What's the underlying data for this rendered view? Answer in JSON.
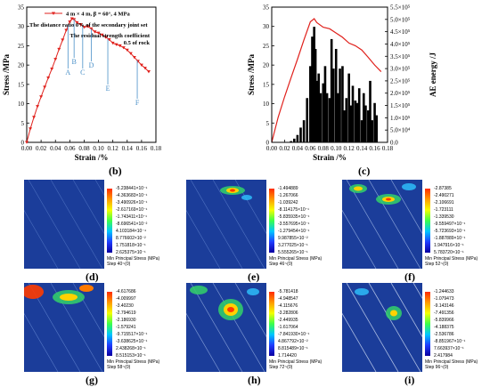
{
  "chart_data": [
    {
      "type": "line",
      "panel": "(b)",
      "legend": "4 m × 4 m, β = 60°, 4 MPa",
      "annotation_ratio": "The distance ratio  0%  of the secondary joint set",
      "annotation_residual": "The residual strength coefficient 0.5 of rock",
      "xlabel": "Strain /%",
      "ylabel": "Stress /MPa",
      "xlim": [
        0,
        0.18
      ],
      "ylim": [
        0,
        35
      ],
      "xticks": [
        "0.00",
        "0.02",
        "0.04",
        "0.06",
        "0.08",
        "0.10",
        "0.12",
        "0.14",
        "0.16",
        "0.18"
      ],
      "yticks": [
        "0",
        "5",
        "10",
        "15",
        "20",
        "25",
        "30",
        "35"
      ],
      "series": [
        {
          "x": [
            0,
            0.005,
            0.01,
            0.015,
            0.02,
            0.025,
            0.03,
            0.035,
            0.04,
            0.045,
            0.05,
            0.055,
            0.06,
            0.063,
            0.066,
            0.07,
            0.075,
            0.08,
            0.085,
            0.09,
            0.095,
            0.1,
            0.105,
            0.11,
            0.115,
            0.12,
            0.125,
            0.13,
            0.135,
            0.14,
            0.145,
            0.15,
            0.155,
            0.16,
            0.165,
            0.17
          ],
          "y": [
            0,
            3.5,
            6.5,
            9.3,
            11.8,
            14.3,
            16.7,
            19.0,
            21.5,
            24.1,
            26.5,
            29.0,
            31.2,
            32.0,
            31.8,
            31.0,
            30.5,
            29.8,
            30.0,
            29.4,
            28.6,
            28.3,
            27.8,
            27.2,
            26.6,
            25.7,
            25.3,
            25.0,
            24.5,
            23.9,
            23.0,
            22.0,
            21.0,
            20.0,
            19.2,
            18.3
          ]
        }
      ],
      "points": [
        {
          "label": "A",
          "x": 0.0575,
          "y": 30.3
        },
        {
          "label": "B",
          "x": 0.066,
          "y": 31.9
        },
        {
          "label": "C",
          "x": 0.078,
          "y": 30.0
        },
        {
          "label": "D",
          "x": 0.09,
          "y": 29.4
        },
        {
          "label": "E",
          "x": 0.113,
          "y": 26.8
        },
        {
          "label": "F",
          "x": 0.154,
          "y": 21.2
        }
      ]
    },
    {
      "type": "bar+line",
      "panel": "(c)",
      "xlabel": "Strain /%",
      "ylabel_left": "Stress /MPa",
      "ylabel_right": "AE energy /J",
      "xlim": [
        0,
        0.18
      ],
      "ylim_left": [
        0,
        35
      ],
      "ylim_right": [
        0,
        550000
      ],
      "xticks": [
        "0.00",
        "0.02",
        "0.04",
        "0.06",
        "0.08",
        "0.10",
        "0.12",
        "0.14",
        "0.16",
        "0.18"
      ],
      "yticks_left": [
        "0",
        "5",
        "10",
        "15",
        "20",
        "25",
        "30",
        "35"
      ],
      "yticks_right": [
        "0.0",
        "5.0×10⁴",
        "1.0×10⁵",
        "1.5×10⁵",
        "2.0×10⁵",
        "2.5×10⁵",
        "3.0×10⁵",
        "3.5×10⁵",
        "4.0×10⁵",
        "4.5×10⁵",
        "5.0×10⁵",
        "5.5×10⁵"
      ],
      "stress": {
        "x": [
          0,
          0.01,
          0.02,
          0.03,
          0.04,
          0.05,
          0.06,
          0.066,
          0.07,
          0.08,
          0.09,
          0.1,
          0.11,
          0.12,
          0.13,
          0.14,
          0.15,
          0.16,
          0.17
        ],
        "y": [
          0,
          6.5,
          11.8,
          16.7,
          21.5,
          26.5,
          31.2,
          32.0,
          31.0,
          29.8,
          29.4,
          28.3,
          27.2,
          25.7,
          25.0,
          23.9,
          22.0,
          20.0,
          18.3
        ]
      },
      "ae_energy": {
        "x": [
          0.03,
          0.035,
          0.04,
          0.045,
          0.05,
          0.055,
          0.06,
          0.063,
          0.066,
          0.068,
          0.07,
          0.073,
          0.076,
          0.08,
          0.083,
          0.086,
          0.09,
          0.093,
          0.096,
          0.1,
          0.103,
          0.106,
          0.11,
          0.113,
          0.116,
          0.12,
          0.123,
          0.126,
          0.13,
          0.133,
          0.136,
          0.14,
          0.143,
          0.146,
          0.15,
          0.153,
          0.156,
          0.16,
          0.163
        ],
        "values": [
          5000,
          15000,
          30000,
          60000,
          90000,
          180000,
          310000,
          430000,
          470000,
          380000,
          250000,
          280000,
          200000,
          240000,
          310000,
          200000,
          180000,
          420000,
          300000,
          380000,
          200000,
          300000,
          310000,
          130000,
          180000,
          280000,
          150000,
          230000,
          170000,
          160000,
          220000,
          90000,
          200000,
          150000,
          130000,
          250000,
          90000,
          160000,
          110000
        ]
      }
    }
  ],
  "sim_panels": [
    {
      "panel": "(d)",
      "caption_line1": "Min Principal Stress (MPa)",
      "caption_line2": "Step 40~(0)",
      "ticks": [
        "-5.238441×10⁻¹",
        "-4.363683×10⁻¹",
        "-3.490926×10⁻¹",
        "-2.617169×10⁻¹",
        "-1.743411×10⁻¹",
        "-8.696541×10⁻²",
        "4.103184×10⁻⁴",
        "8.776602×10⁻²",
        "1.751818×10⁻¹",
        "2.625375×10⁻¹"
      ]
    },
    {
      "panel": "(e)",
      "caption_line1": "Min Principal Stress (MPa)",
      "caption_line2": "Step 46~(0)",
      "ticks": [
        "-1.494889",
        "-1.267066",
        "-1.039242",
        "-8.114175×10⁻¹",
        "-5.835935×10⁻¹",
        "-3.557695×10⁻¹",
        "-1.279454×10⁻¹",
        "9.987855×10⁻²",
        "3.277025×10⁻¹",
        "5.555265×10⁻¹"
      ]
    },
    {
      "panel": "(f)",
      "caption_line1": "Min Principal Stress (MPa)",
      "caption_line2": "Step 52~(0)",
      "ticks": [
        "-2.87385",
        "-2.490271",
        "-2.106691",
        "-1.723111",
        "-1.339530",
        "-9.559497×10⁻¹",
        "-5.723693×10⁻¹",
        "-1.887889×10⁻¹",
        "1.947916×10⁻¹",
        "5.783720×10⁻¹"
      ]
    },
    {
      "panel": "(g)",
      "caption_line1": "Min Principal Stress (MPa)",
      "caption_line2": "Step 58~(0)",
      "ticks": [
        "-4.617686",
        "-4.009997",
        "-3.40230",
        "-2.794619",
        "-2.186930",
        "-1.579241",
        "-9.715517×10⁻¹",
        "-3.638625×10⁻¹",
        "2.438268×10⁻¹",
        "8.515153×10⁻¹"
      ]
    },
    {
      "panel": "(h)",
      "caption_line1": "Min Principal Stress (MPa)",
      "caption_line2": "Step 72~(0)",
      "ticks": [
        "-5.781418",
        "-4.948547",
        "-4.115676",
        "-3.282806",
        "-2.449935",
        "-1.617064",
        "-7.841930×10⁻¹",
        "4.867792×10⁻²",
        "8.815489×10⁻¹",
        "1.714420"
      ]
    },
    {
      "panel": "(i)",
      "caption_line1": "Min Principal Stress (MPa)",
      "caption_line2": "Step 96~(0)",
      "ticks": [
        "-1.244633",
        "-1.079473",
        "-9.143146",
        "-7.491356",
        "-5.839966",
        "-4.188375",
        "-2.536786",
        "-8.851967×10⁻¹",
        "7.663937×10⁻¹",
        "2.417984"
      ]
    }
  ],
  "labels": {
    "b": "(b)",
    "c": "(c)",
    "d": "(d)",
    "e": "(e)",
    "f": "(f)",
    "g": "(g)",
    "h": "(h)",
    "i": "(i)"
  },
  "colors": {
    "stress_line": "#e0211c",
    "ae_bars": "#000000",
    "point_markers": "#4a90c8",
    "sim_background": "#1b3d9a"
  }
}
